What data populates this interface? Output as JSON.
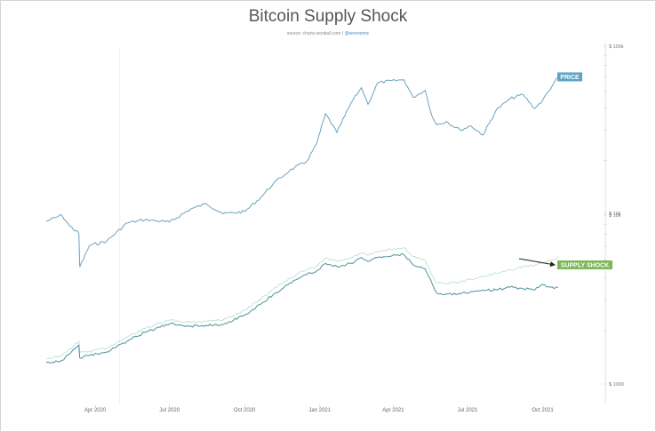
{
  "title": "Bitcoin Supply Shock",
  "subtitle": {
    "source": "source: charts.woobull.com",
    "separator": " / ",
    "handle": "@woonomic"
  },
  "colors": {
    "price": "#6ba3bf",
    "supply_shock": "#5a9aa6",
    "supply_shock_faint": "#bfe0cc",
    "price_tag": "#5da2c9",
    "supply_tag": "#7cb85a"
  },
  "chart_data": [
    {
      "type": "line",
      "panel": "price",
      "tag": "PRICE",
      "scale": "log",
      "ytick_labels": [
        "$ 100k",
        "",
        "",
        "",
        "",
        "",
        "",
        "",
        "$ 10k"
      ],
      "xtick_labels": [
        "Apr 2020",
        "Jul 2020",
        "Oct 2020",
        "Jan 2021",
        "Apr 2021",
        "Jul 2021",
        "Oct 2021"
      ],
      "series": [
        {
          "x": [
            "2020-02-01",
            "2020-02-20",
            "2020-03-01",
            "2020-03-12",
            "2020-03-13",
            "2020-03-25",
            "2020-04-15",
            "2020-05-10",
            "2020-06-01",
            "2020-07-01",
            "2020-07-27",
            "2020-08-15",
            "2020-09-05",
            "2020-10-01",
            "2020-10-21",
            "2020-11-05",
            "2020-11-25",
            "2020-12-16",
            "2020-12-28",
            "2021-01-08",
            "2021-01-22",
            "2021-02-08",
            "2021-02-21",
            "2021-03-01",
            "2021-03-13",
            "2021-04-14",
            "2021-04-25",
            "2021-05-10",
            "2021-05-19",
            "2021-05-24",
            "2021-06-05",
            "2021-06-22",
            "2021-07-05",
            "2021-07-20",
            "2021-08-05",
            "2021-08-22",
            "2021-09-07",
            "2021-09-21",
            "2021-10-01",
            "2021-10-15",
            "2021-10-20"
          ],
          "values": [
            9300,
            10100,
            8700,
            7900,
            5000,
            6700,
            7100,
            9100,
            9500,
            9200,
            11000,
            11800,
            10300,
            10600,
            12900,
            15500,
            18500,
            21000,
            26500,
            40000,
            31000,
            46000,
            57000,
            45500,
            61000,
            63500,
            50000,
            55000,
            38000,
            34500,
            36000,
            32000,
            34000,
            30000,
            42000,
            49000,
            52000,
            43000,
            48000,
            61000,
            66000
          ]
        }
      ]
    },
    {
      "type": "line",
      "panel": "supply_shock",
      "tag": "SUPPLY SHOCK",
      "ytick_labels": [
        "$ 10k",
        "",
        "",
        "",
        "",
        "",
        "",
        "",
        "$ 1000"
      ],
      "xtick_labels": [
        "Apr 2020",
        "Jul 2020",
        "Oct 2020",
        "Jan 2021",
        "Apr 2021",
        "Jul 2021",
        "Oct 2021"
      ],
      "series": [
        {
          "x": [
            "2020-02-01",
            "2020-02-20",
            "2020-03-01",
            "2020-03-12",
            "2020-03-13",
            "2020-03-25",
            "2020-04-15",
            "2020-05-10",
            "2020-06-01",
            "2020-07-01",
            "2020-07-27",
            "2020-08-15",
            "2020-09-05",
            "2020-10-01",
            "2020-10-21",
            "2020-11-05",
            "2020-11-25",
            "2020-12-16",
            "2020-12-28",
            "2021-01-08",
            "2021-01-22",
            "2021-02-08",
            "2021-02-21",
            "2021-03-01",
            "2021-03-13",
            "2021-04-14",
            "2021-04-25",
            "2021-05-10",
            "2021-05-19",
            "2021-05-24",
            "2021-06-05",
            "2021-06-22",
            "2021-07-05",
            "2021-07-20",
            "2021-08-05",
            "2021-08-22",
            "2021-09-07",
            "2021-09-21",
            "2021-10-01",
            "2021-10-15",
            "2021-10-20"
          ],
          "values": [
            1170,
            1200,
            1300,
            1450,
            1240,
            1280,
            1330,
            1520,
            1700,
            1880,
            1830,
            1850,
            1870,
            2100,
            2400,
            2700,
            3100,
            3450,
            3600,
            3950,
            3800,
            3950,
            4250,
            4050,
            4250,
            4400,
            3900,
            3700,
            3050,
            2750,
            2720,
            2720,
            2790,
            2850,
            2850,
            2950,
            2900,
            2850,
            3050,
            2900,
            2950
          ]
        },
        {
          "x": [
            "2020-02-01",
            "2020-02-20",
            "2020-03-01",
            "2020-03-12",
            "2020-03-13",
            "2020-03-25",
            "2020-04-15",
            "2020-05-10",
            "2020-06-01",
            "2020-07-01",
            "2020-07-27",
            "2020-08-15",
            "2020-09-05",
            "2020-10-01",
            "2020-10-21",
            "2020-11-05",
            "2020-11-25",
            "2020-12-16",
            "2020-12-28",
            "2021-01-08",
            "2021-01-22",
            "2021-02-08",
            "2021-02-21",
            "2021-03-01",
            "2021-03-13",
            "2021-04-14",
            "2021-04-25",
            "2021-05-10",
            "2021-05-19",
            "2021-05-24",
            "2021-06-05",
            "2021-06-22",
            "2021-07-05",
            "2021-07-20",
            "2021-08-05",
            "2021-08-22",
            "2021-09-07",
            "2021-09-21",
            "2021-10-01",
            "2021-10-15",
            "2021-10-20"
          ],
          "values": [
            1230,
            1270,
            1380,
            1520,
            1320,
            1340,
            1400,
            1600,
            1780,
            1970,
            1920,
            1950,
            1980,
            2220,
            2550,
            2880,
            3300,
            3650,
            3800,
            4200,
            4050,
            4200,
            4500,
            4350,
            4550,
            4800,
            4300,
            4100,
            3400,
            3100,
            3100,
            3150,
            3250,
            3350,
            3500,
            3650,
            3800,
            3850,
            4000,
            4150,
            4300
          ]
        }
      ]
    }
  ]
}
